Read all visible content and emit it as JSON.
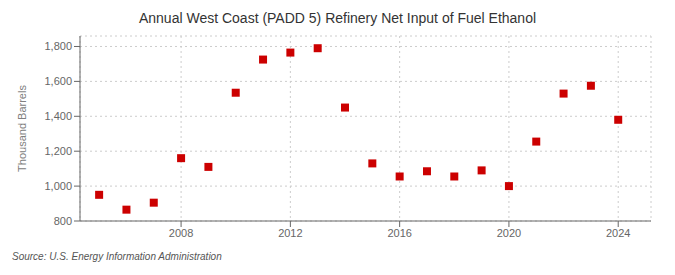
{
  "chart_data": {
    "type": "scatter",
    "title": "Annual West Coast (PADD 5) Refinery Net Input of Fuel Ethanol",
    "ylabel": "Thousand Barrels",
    "annotations": [
      "Source: U.S. Energy Information Administration"
    ],
    "x": [
      2005,
      2006,
      2007,
      2008,
      2009,
      2010,
      2011,
      2012,
      2013,
      2014,
      2015,
      2016,
      2017,
      2018,
      2019,
      2020,
      2021,
      2022,
      2023,
      2024
    ],
    "values": [
      950,
      865,
      905,
      1160,
      1110,
      1535,
      1725,
      1765,
      1790,
      1450,
      1130,
      1055,
      1085,
      1055,
      1090,
      1000,
      1255,
      1530,
      1575,
      1380
    ],
    "color": "#cc0000",
    "marker": "square",
    "xlim": [
      2004.3,
      2025.2
    ],
    "xticks": [
      2008,
      2012,
      2016,
      2020,
      2024
    ],
    "ylim": [
      800,
      1860
    ],
    "yticks": [
      800,
      {
        "value": 1000,
        "label": "1,000"
      },
      {
        "value": 1200,
        "label": "1,200"
      },
      {
        "value": 1400,
        "label": "1,400"
      },
      {
        "value": 1600,
        "label": "1,600"
      },
      {
        "value": 1800,
        "label": "1,800"
      }
    ],
    "grid": true
  }
}
